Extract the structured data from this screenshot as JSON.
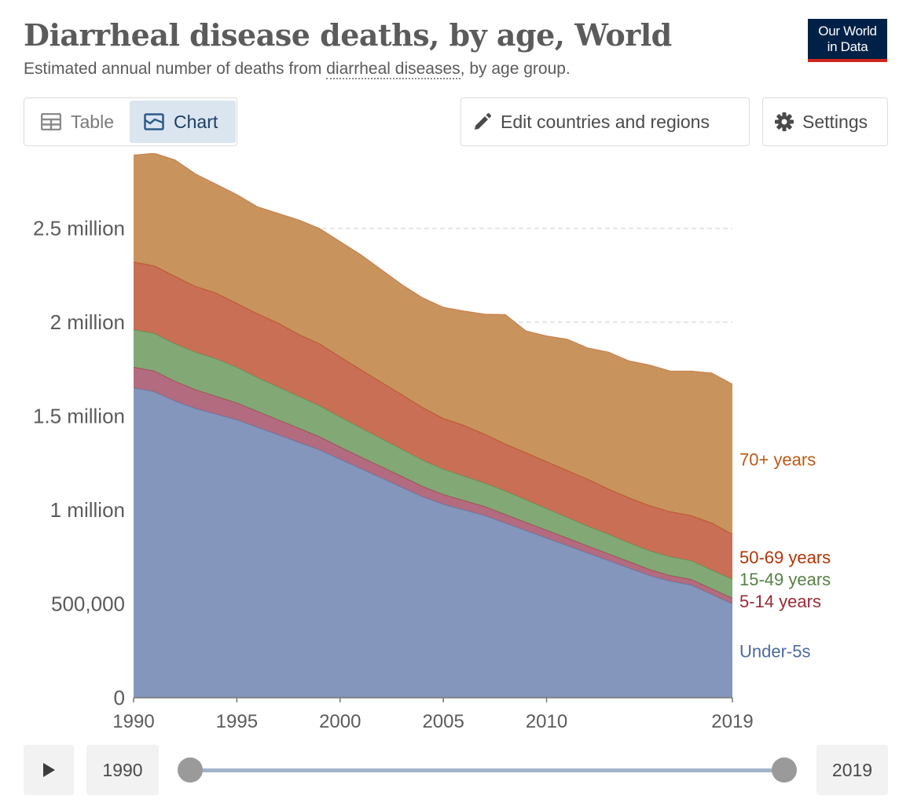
{
  "header": {
    "title": "Diarrheal disease deaths, by age, World",
    "subtitle_pre": "Estimated annual number of deaths from ",
    "subtitle_link": "diarrheal diseases",
    "subtitle_post": ", by age group.",
    "logo_line1": "Our World",
    "logo_line2": "in Data"
  },
  "tabs": [
    {
      "label": "Table",
      "icon": "table-icon",
      "active": false
    },
    {
      "label": "Chart",
      "icon": "chart-icon",
      "active": true
    }
  ],
  "toolbar": {
    "edit_label": "Edit countries and regions",
    "edit_icon": "pencil-icon",
    "settings_label": "Settings",
    "settings_icon": "gear-icon"
  },
  "timeline": {
    "start_label": "1990",
    "end_label": "2019",
    "play_icon": "play-icon"
  },
  "chart_data": {
    "type": "area",
    "stacked": true,
    "x": [
      1990,
      1991,
      1992,
      1993,
      1994,
      1995,
      1996,
      1997,
      1998,
      1999,
      2000,
      2001,
      2002,
      2003,
      2004,
      2005,
      2006,
      2007,
      2008,
      2009,
      2010,
      2011,
      2012,
      2013,
      2014,
      2015,
      2016,
      2017,
      2018,
      2019
    ],
    "series": [
      {
        "name": "Under-5s",
        "color": "#8496bb",
        "label_color": "#4c6a9c",
        "values": [
          1650000,
          1630000,
          1580000,
          1540000,
          1510000,
          1480000,
          1440000,
          1400000,
          1360000,
          1320000,
          1270000,
          1220000,
          1170000,
          1120000,
          1070000,
          1030000,
          1000000,
          970000,
          930000,
          890000,
          850000,
          810000,
          770000,
          730000,
          690000,
          650000,
          620000,
          600000,
          550000,
          500000
        ]
      },
      {
        "name": "5-14 years",
        "color": "#b36b7f",
        "label_color": "#9a2934",
        "values": [
          110000,
          110000,
          105000,
          100000,
          95000,
          90000,
          85000,
          80000,
          75000,
          70000,
          65000,
          62000,
          60000,
          58000,
          55000,
          52000,
          50000,
          48000,
          46000,
          44000,
          42000,
          40000,
          38000,
          36000,
          34000,
          32000,
          30000,
          30000,
          30000,
          30000
        ]
      },
      {
        "name": "15-49 years",
        "color": "#82a876",
        "label_color": "#578145",
        "values": [
          200000,
          200000,
          200000,
          200000,
          200000,
          190000,
          180000,
          175000,
          170000,
          165000,
          160000,
          155000,
          150000,
          145000,
          140000,
          135000,
          130000,
          125000,
          125000,
          120000,
          115000,
          110000,
          105000,
          105000,
          100000,
          100000,
          100000,
          100000,
          100000,
          100000
        ]
      },
      {
        "name": "50-69 years",
        "color": "#c96f56",
        "label_color": "#b13507",
        "values": [
          360000,
          360000,
          360000,
          350000,
          350000,
          340000,
          340000,
          340000,
          330000,
          330000,
          320000,
          310000,
          300000,
          290000,
          280000,
          270000,
          270000,
          260000,
          250000,
          250000,
          250000,
          250000,
          250000,
          240000,
          240000,
          240000,
          240000,
          240000,
          250000,
          240000
        ]
      },
      {
        "name": "70+ years",
        "color": "#c9935e",
        "label_color": "#be5915",
        "values": [
          570000,
          600000,
          620000,
          600000,
          580000,
          580000,
          570000,
          585000,
          610000,
          615000,
          615000,
          613000,
          600000,
          587000,
          585000,
          593000,
          610000,
          640000,
          690000,
          650000,
          670000,
          700000,
          700000,
          730000,
          730000,
          750000,
          750000,
          770000,
          800000,
          800000
        ]
      }
    ],
    "y_ticks": [
      {
        "value": 0,
        "label": "0"
      },
      {
        "value": 500000,
        "label": "500,000"
      },
      {
        "value": 1000000,
        "label": "1 million"
      },
      {
        "value": 1500000,
        "label": "1.5 million"
      },
      {
        "value": 2000000,
        "label": "2 million"
      },
      {
        "value": 2500000,
        "label": "2.5 million"
      }
    ],
    "x_ticks": [
      1990,
      1995,
      2000,
      2005,
      2010,
      2019
    ],
    "ylim": [
      0,
      2900000
    ],
    "xlim": [
      1990,
      2019
    ],
    "grid": "horizontal-dashed",
    "legend": "right-inline",
    "title": "Diarrheal disease deaths, by age, World"
  }
}
